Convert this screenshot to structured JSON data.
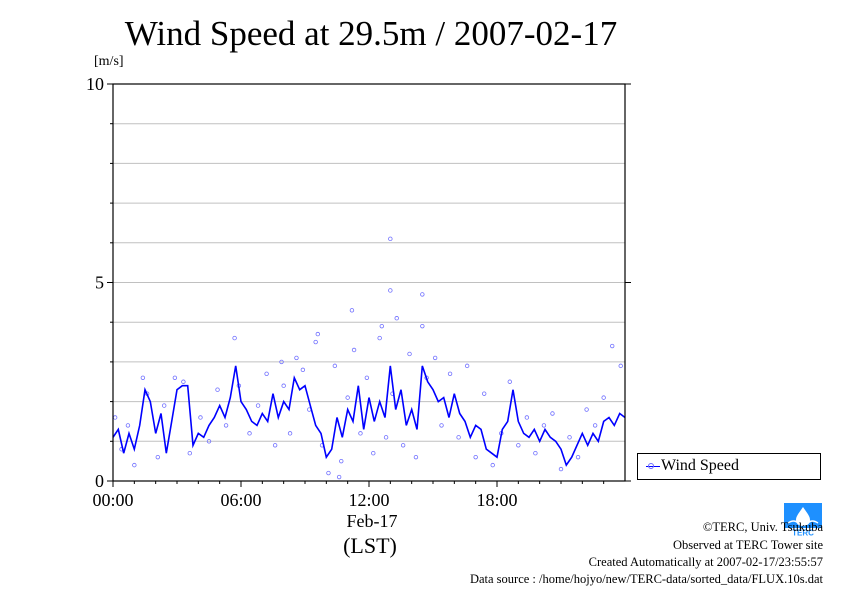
{
  "title": "Wind Speed at 29.5m / 2007-02-17",
  "unit_label": "[m/s]",
  "x_date_label": "Feb-17",
  "x_timezone_label": "(LST)",
  "legend_label": "Wind Speed",
  "credits": {
    "copyright": "©TERC, Univ. Tsukuba",
    "observed": "Observed at TERC Tower site",
    "created": "Created Automatically at 2007-02-17/23:55:57",
    "source": "Data source : /home/hojyo/new/TERC-data/sorted_data/FLUX.10s.dat"
  },
  "logo_text": "TERC",
  "colors": {
    "line": "#0000ff",
    "scatter": "#7070ff",
    "grid": "#c0c0c0",
    "logo": "#1e90ff"
  },
  "chart_data": {
    "type": "line",
    "title": "Wind Speed at 29.5m / 2007-02-17",
    "ylabel": "[m/s]",
    "xlabel": "Feb-17 (LST)",
    "ylim": [
      0,
      10
    ],
    "xlim": [
      0,
      24
    ],
    "x_unit": "hour of day",
    "y_ticks": [
      "0",
      "5",
      "10"
    ],
    "x_ticks": [
      {
        "hour": 0,
        "label": "00:00"
      },
      {
        "hour": 6,
        "label": "06:00"
      },
      {
        "hour": 12,
        "label": "12:00"
      },
      {
        "hour": 18,
        "label": "18:00"
      }
    ],
    "grid": true,
    "legend_position": "right",
    "series": [
      {
        "name": "Wind Speed",
        "style": "line",
        "x": [
          0.0,
          0.25,
          0.5,
          0.75,
          1.0,
          1.25,
          1.5,
          1.75,
          2.0,
          2.25,
          2.5,
          2.75,
          3.0,
          3.25,
          3.5,
          3.75,
          4.0,
          4.25,
          4.5,
          4.75,
          5.0,
          5.25,
          5.5,
          5.75,
          6.0,
          6.25,
          6.5,
          6.75,
          7.0,
          7.25,
          7.5,
          7.75,
          8.0,
          8.25,
          8.5,
          8.75,
          9.0,
          9.25,
          9.5,
          9.75,
          10.0,
          10.25,
          10.5,
          10.75,
          11.0,
          11.25,
          11.5,
          11.75,
          12.0,
          12.25,
          12.5,
          12.75,
          13.0,
          13.25,
          13.5,
          13.75,
          14.0,
          14.25,
          14.5,
          14.75,
          15.0,
          15.25,
          15.5,
          15.75,
          16.0,
          16.25,
          16.5,
          16.75,
          17.0,
          17.25,
          17.5,
          17.75,
          18.0,
          18.25,
          18.5,
          18.75,
          19.0,
          19.25,
          19.5,
          19.75,
          20.0,
          20.25,
          20.5,
          20.75,
          21.0,
          21.25,
          21.5,
          21.75,
          22.0,
          22.25,
          22.5,
          22.75,
          23.0,
          23.25,
          23.5,
          23.75,
          24.0
        ],
        "y": [
          1.1,
          1.3,
          0.7,
          1.2,
          0.8,
          1.4,
          2.3,
          2.0,
          1.2,
          1.7,
          0.7,
          1.5,
          2.3,
          2.4,
          2.4,
          0.9,
          1.2,
          1.1,
          1.4,
          1.6,
          1.9,
          1.6,
          2.1,
          2.9,
          2.0,
          1.8,
          1.5,
          1.4,
          1.7,
          1.5,
          2.2,
          1.6,
          2.0,
          1.8,
          2.6,
          2.3,
          2.4,
          1.9,
          1.4,
          1.2,
          0.6,
          0.8,
          1.6,
          1.1,
          1.8,
          1.5,
          2.4,
          1.3,
          2.1,
          1.5,
          2.0,
          1.6,
          2.9,
          1.8,
          2.3,
          1.4,
          1.8,
          1.3,
          2.9,
          2.5,
          2.3,
          2.0,
          2.1,
          1.6,
          2.2,
          1.7,
          1.5,
          1.1,
          1.4,
          1.3,
          0.8,
          0.7,
          0.6,
          1.3,
          1.5,
          2.3,
          1.5,
          1.2,
          1.1,
          1.3,
          1.0,
          1.3,
          1.1,
          1.0,
          0.8,
          0.4,
          0.6,
          0.9,
          1.2,
          0.9,
          1.2,
          1.0,
          1.5,
          1.6,
          1.4,
          1.7,
          1.6
        ]
      },
      {
        "name": "Wind Speed",
        "style": "scatter",
        "x": [
          0.1,
          0.4,
          0.7,
          1.0,
          1.4,
          1.6,
          2.1,
          2.4,
          2.9,
          3.3,
          3.6,
          4.1,
          4.5,
          4.9,
          5.3,
          5.7,
          5.9,
          6.4,
          6.8,
          7.2,
          7.6,
          8.0,
          8.3,
          8.6,
          8.9,
          9.2,
          9.5,
          9.8,
          10.1,
          10.4,
          10.7,
          11.0,
          11.3,
          11.6,
          11.9,
          12.2,
          12.5,
          12.8,
          13.0,
          13.1,
          13.3,
          13.6,
          13.9,
          14.2,
          14.5,
          14.7,
          15.1,
          15.4,
          15.8,
          16.2,
          16.6,
          17.0,
          17.4,
          17.8,
          18.2,
          18.6,
          19.0,
          19.4,
          19.8,
          20.2,
          20.6,
          21.0,
          21.4,
          21.8,
          22.2,
          22.6,
          23.0,
          23.4,
          23.8,
          11.2,
          13.0,
          14.5,
          12.6,
          9.6,
          10.6,
          7.9
        ],
        "y": [
          1.6,
          0.8,
          1.4,
          0.4,
          2.6,
          2.2,
          0.6,
          1.9,
          2.6,
          2.5,
          0.7,
          1.6,
          1.0,
          2.3,
          1.4,
          3.6,
          2.4,
          1.2,
          1.9,
          2.7,
          0.9,
          2.4,
          1.2,
          3.1,
          2.8,
          1.8,
          3.5,
          0.9,
          0.2,
          2.9,
          0.5,
          2.1,
          3.3,
          1.2,
          2.6,
          0.7,
          3.6,
          1.1,
          4.8,
          2.2,
          4.1,
          0.9,
          3.2,
          0.6,
          3.9,
          2.6,
          3.1,
          1.4,
          2.7,
          1.1,
          2.9,
          0.6,
          2.2,
          0.4,
          1.2,
          2.5,
          0.9,
          1.6,
          0.7,
          1.4,
          1.7,
          0.3,
          1.1,
          0.6,
          1.8,
          1.4,
          2.1,
          3.4,
          2.9,
          4.3,
          6.1,
          4.7,
          3.9,
          3.7,
          0.1,
          3.0
        ]
      }
    ]
  }
}
